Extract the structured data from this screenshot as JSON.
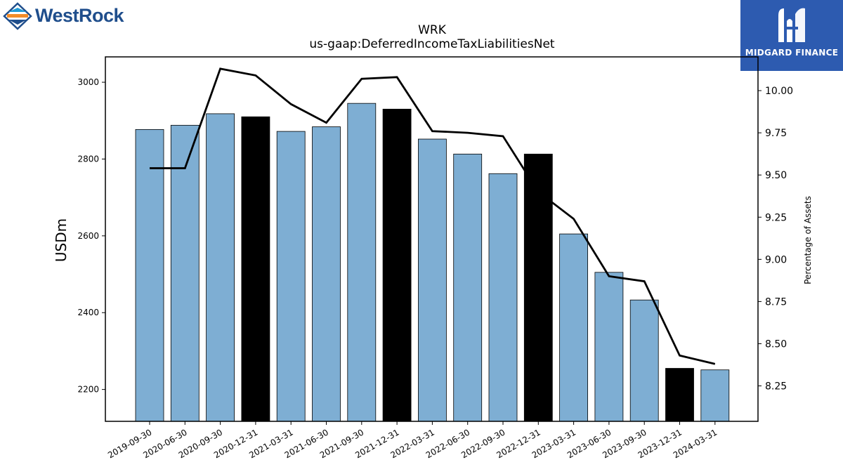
{
  "brand_left": {
    "name": "WestRock",
    "icon": "westrock-logo-icon"
  },
  "brand_right": {
    "name": "MIDGARD FINANCE",
    "icon": "midgard-logo-icon"
  },
  "chart_data": {
    "type": "bar",
    "title": "WRK",
    "subtitle": "us-gaap:DeferredIncomeTaxLiabilitiesNet",
    "ylabel": "USDm",
    "y2label": "Percentage of Assets",
    "categories": [
      "2019-09-30",
      "2020-06-30",
      "2020-09-30",
      "2020-12-31",
      "2021-03-31",
      "2021-06-30",
      "2021-09-30",
      "2021-12-31",
      "2022-03-31",
      "2022-06-30",
      "2022-09-30",
      "2022-12-31",
      "2023-03-31",
      "2023-06-30",
      "2023-09-30",
      "2023-12-31",
      "2024-03-31"
    ],
    "series": [
      {
        "values": [
          2877,
          2888,
          2918,
          2910,
          2872,
          2884,
          2945,
          2930,
          2852,
          2813,
          2762,
          2813,
          2605,
          2505,
          2433,
          2255,
          2251
        ],
        "highlight": [
          false,
          false,
          false,
          true,
          false,
          false,
          false,
          true,
          false,
          false,
          false,
          true,
          false,
          false,
          false,
          true,
          false
        ],
        "colors": {
          "normal": "#7eaed3",
          "highlight": "#000000"
        }
      },
      {
        "type": "line",
        "axis": "right",
        "values": [
          9.54,
          9.54,
          10.13,
          10.09,
          9.92,
          9.81,
          10.07,
          10.08,
          9.76,
          9.75,
          9.73,
          9.4,
          9.24,
          8.9,
          8.87,
          8.43,
          8.38
        ]
      }
    ],
    "ylim": [
      2117,
      3066
    ],
    "yticks": [
      2200,
      2400,
      2600,
      2800,
      3000
    ],
    "y2lim": [
      8.04,
      10.2
    ],
    "y2ticks": [
      "8.25",
      "8.50",
      "8.75",
      "9.00",
      "9.25",
      "9.50",
      "9.75",
      "10.00"
    ],
    "grid": false
  }
}
